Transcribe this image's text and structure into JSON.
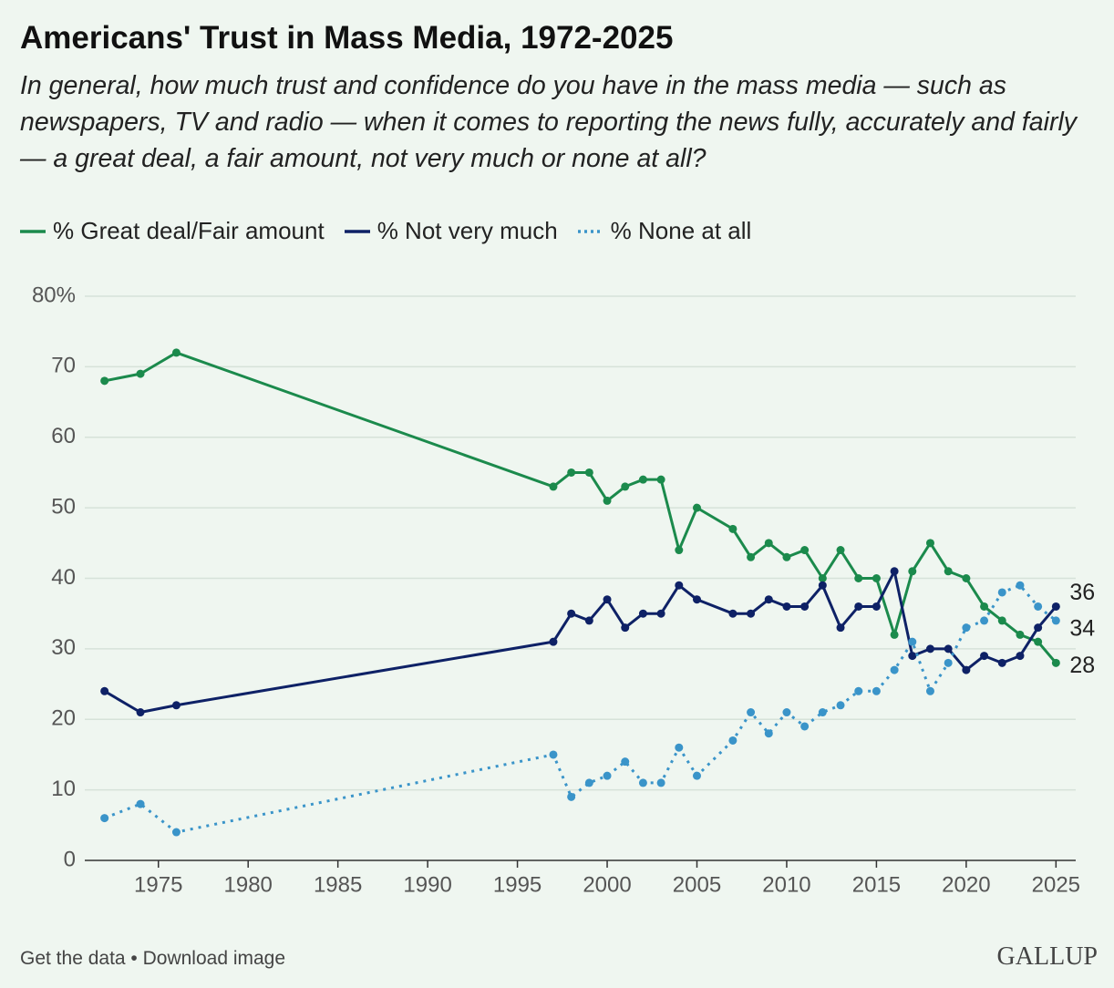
{
  "chart_data": {
    "type": "line",
    "title": "Americans' Trust in Mass Media, 1972-2025",
    "subtitle": "In general, how much trust and confidence do you have in the mass media — such as newspapers, TV and radio — when it comes to reporting the news fully, accurately and fairly — a great deal, a fair amount, not very much or none at all?",
    "x": [
      1972,
      1974,
      1976,
      1997,
      1998,
      1999,
      2000,
      2001,
      2002,
      2003,
      2004,
      2005,
      2007,
      2008,
      2009,
      2010,
      2011,
      2012,
      2013,
      2014,
      2015,
      2016,
      2017,
      2018,
      2019,
      2020,
      2021,
      2022,
      2023,
      2024,
      2025
    ],
    "series": [
      {
        "name": "% Great deal/Fair amount",
        "color": "#1b8a4c",
        "dash": "solid",
        "values": [
          68,
          69,
          72,
          53,
          55,
          55,
          51,
          53,
          54,
          54,
          44,
          50,
          47,
          43,
          45,
          43,
          44,
          40,
          44,
          40,
          40,
          32,
          41,
          45,
          41,
          40,
          36,
          34,
          32,
          31,
          28
        ]
      },
      {
        "name": "% Not very much",
        "color": "#0e2166",
        "dash": "solid",
        "values": [
          24,
          21,
          22,
          31,
          35,
          34,
          37,
          33,
          35,
          35,
          39,
          37,
          35,
          35,
          37,
          36,
          36,
          39,
          33,
          36,
          36,
          41,
          29,
          30,
          30,
          27,
          29,
          28,
          29,
          33,
          36
        ]
      },
      {
        "name": "% None at all",
        "color": "#3a94c9",
        "dash": "dotted",
        "values": [
          6,
          8,
          4,
          15,
          9,
          11,
          12,
          14,
          11,
          11,
          16,
          12,
          17,
          21,
          18,
          21,
          19,
          21,
          22,
          24,
          24,
          27,
          31,
          24,
          28,
          33,
          34,
          38,
          39,
          36,
          34
        ]
      }
    ],
    "xlim": [
      1970.9,
      2026.1
    ],
    "xticks": [
      1975,
      1980,
      1985,
      1990,
      1995,
      2000,
      2005,
      2010,
      2015,
      2020,
      2025
    ],
    "ylim": [
      0,
      80
    ],
    "yticks": [
      0,
      10,
      20,
      30,
      40,
      50,
      60,
      70,
      {
        "value": 80,
        "label": "80%"
      }
    ],
    "grid": true,
    "footer": "Get the data • Download image",
    "source": "GALLUP"
  }
}
